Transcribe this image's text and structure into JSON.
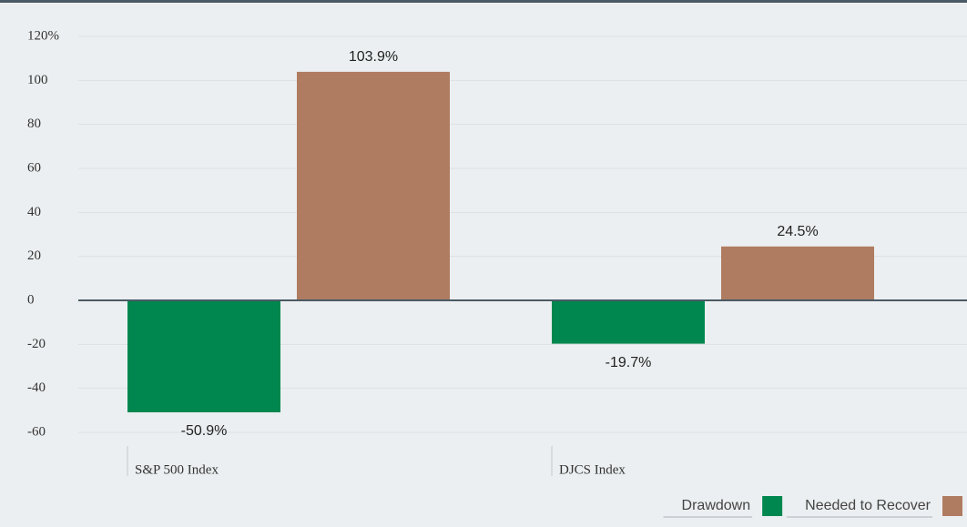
{
  "chart_data": {
    "type": "bar",
    "categories": [
      "S&P 500 Index",
      "DJCS Index"
    ],
    "series": [
      {
        "name": "Drawdown",
        "color": "#00874f",
        "values": [
          -50.9,
          -19.7
        ],
        "value_labels": [
          "-50.9%",
          "-19.7%"
        ]
      },
      {
        "name": "Needed to Recover",
        "color": "#b07c61",
        "values": [
          103.9,
          24.5
        ],
        "value_labels": [
          "103.9%",
          "24.5%"
        ]
      }
    ],
    "ylim": [
      -60,
      120
    ],
    "yticks": [
      -60,
      -40,
      -20,
      0,
      20,
      40,
      60,
      80,
      100,
      {
        "value": 120,
        "label": "120%"
      }
    ],
    "grid": true,
    "legend": "bottom-right"
  }
}
